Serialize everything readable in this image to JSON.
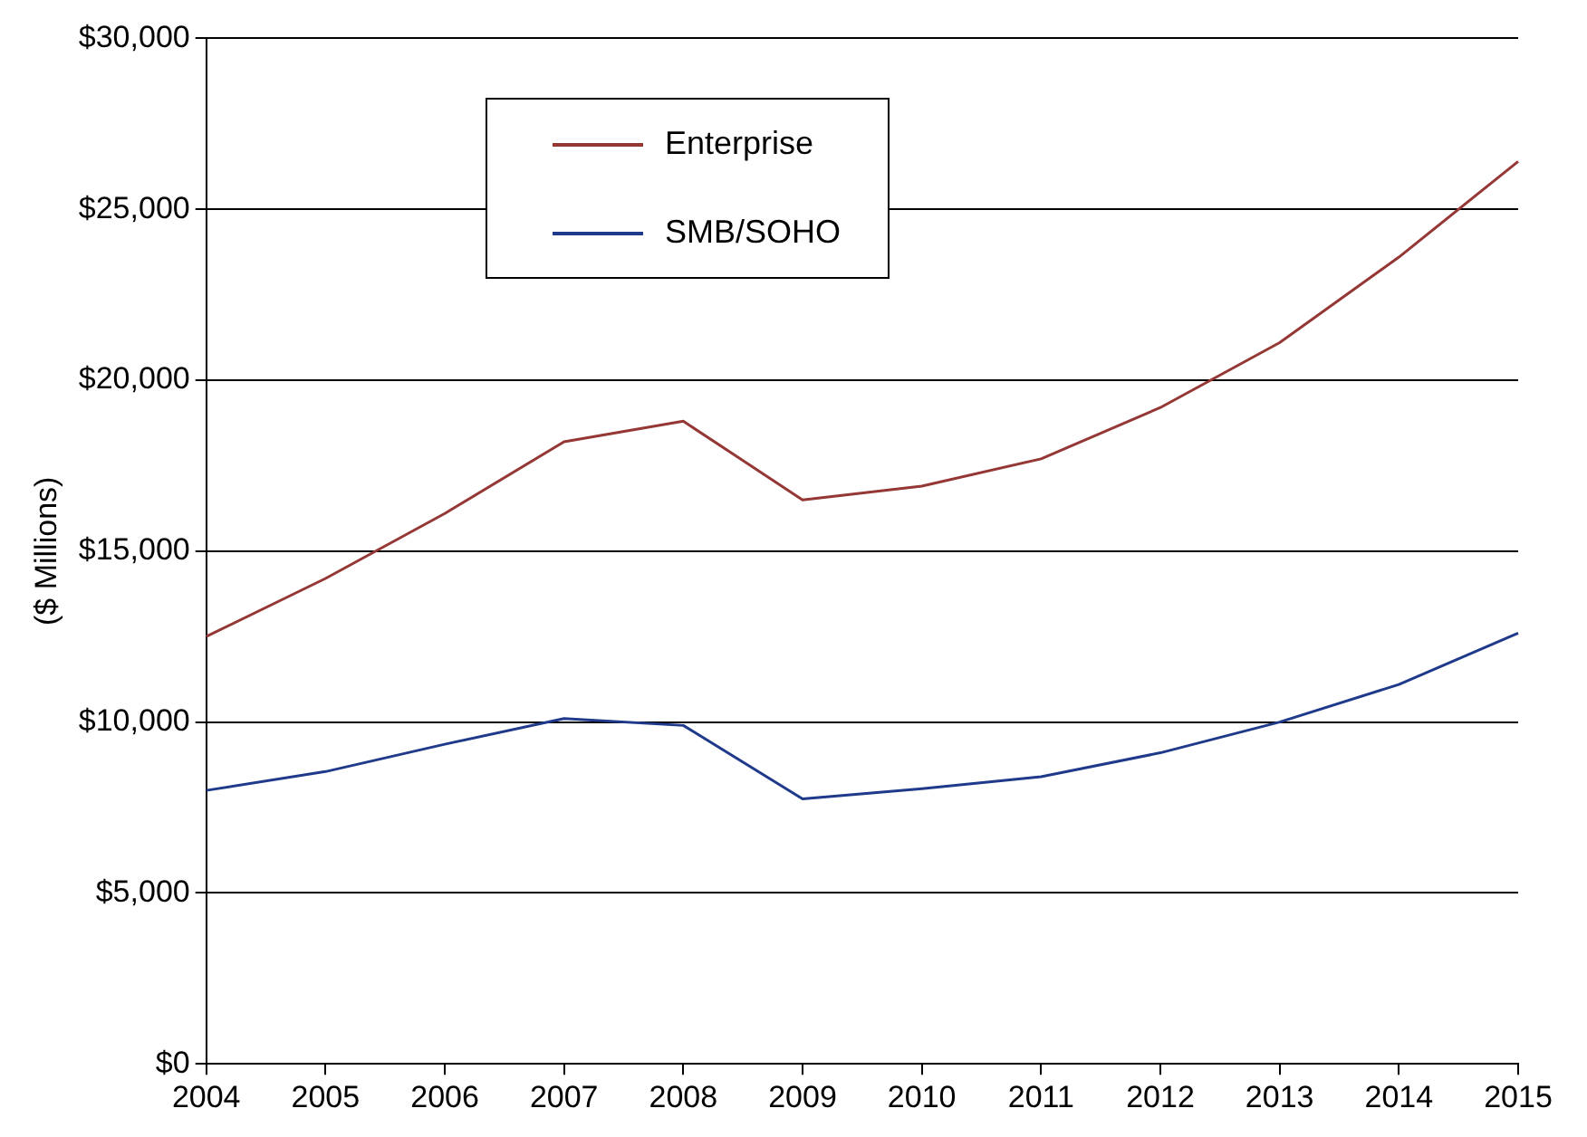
{
  "chart_data": {
    "type": "line",
    "ylabel": "($ Millions)",
    "x": [
      2004,
      2005,
      2006,
      2007,
      2008,
      2009,
      2010,
      2011,
      2012,
      2013,
      2014,
      2015
    ],
    "xlim": [
      2004,
      2015
    ],
    "xticks": [
      2004,
      2005,
      2006,
      2007,
      2008,
      2009,
      2010,
      2011,
      2012,
      2013,
      2014,
      2015
    ],
    "ylim": [
      0,
      30000
    ],
    "yticks": [
      {
        "value": 0,
        "label": "$0"
      },
      {
        "value": 5000,
        "label": "$5,000"
      },
      {
        "value": 10000,
        "label": "$10,000"
      },
      {
        "value": 15000,
        "label": "$15,000"
      },
      {
        "value": 20000,
        "label": "$20,000"
      },
      {
        "value": 25000,
        "label": "$25,000"
      },
      {
        "value": 30000,
        "label": "$30,000"
      }
    ],
    "grid": "y",
    "legend": "top left",
    "marker": "none",
    "line_style": "solid",
    "series": [
      {
        "name": "Enterprise",
        "color": "#953735",
        "values": [
          12500,
          14200,
          16100,
          18200,
          18800,
          16500,
          16900,
          17700,
          19200,
          21100,
          23600,
          26400
        ]
      },
      {
        "name": "SMB/SOHO",
        "color": "#1f3a8a",
        "values": [
          8000,
          8550,
          9350,
          10100,
          9900,
          7750,
          8050,
          8400,
          9100,
          10000,
          11100,
          12600
        ]
      }
    ]
  }
}
